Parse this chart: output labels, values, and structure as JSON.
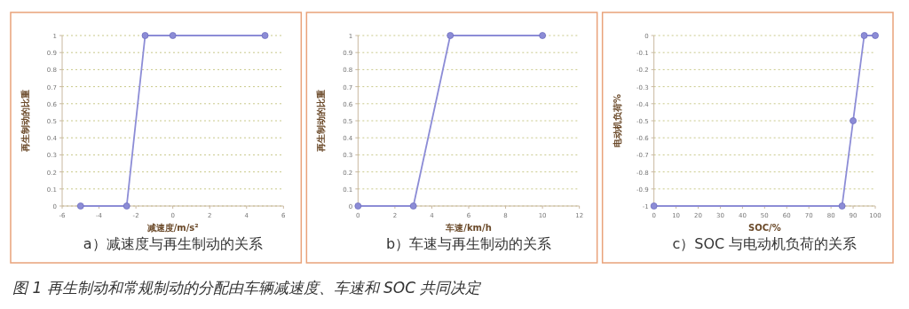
{
  "chart_data": [
    {
      "type": "line",
      "title": "a）减速度与再生制动的关系",
      "xlabel": "减速度/m/s²",
      "ylabel": "再生制动的比重",
      "x": [
        -5,
        -2.5,
        -1.5,
        0,
        5
      ],
      "series": [
        {
          "color": "#8c8cd6",
          "values": [
            0,
            0,
            1,
            1,
            1
          ]
        }
      ],
      "xlim": [
        -6,
        6
      ],
      "xticks": [
        -6,
        -4,
        -2,
        0,
        2,
        4,
        6
      ],
      "ylim": [
        0,
        1
      ],
      "yticks": [
        0,
        0.1,
        0.2,
        0.3,
        0.4,
        0.5,
        0.6,
        0.7,
        0.8,
        0.9,
        1
      ],
      "grid": "y",
      "marker": "circle",
      "line_style": "solid"
    },
    {
      "type": "line",
      "title": "b）车速与再生制动的关系",
      "xlabel": "车速/km/h",
      "ylabel": "再生制动的比重",
      "x": [
        0,
        3,
        5,
        10
      ],
      "series": [
        {
          "color": "#8c8cd6",
          "values": [
            0,
            0,
            1,
            1
          ]
        }
      ],
      "xlim": [
        0,
        12
      ],
      "xticks": [
        0,
        2,
        4,
        6,
        8,
        10,
        12
      ],
      "ylim": [
        0,
        1
      ],
      "yticks": [
        0,
        0.1,
        0.2,
        0.3,
        0.4,
        0.5,
        0.6,
        0.7,
        0.8,
        0.9,
        1
      ],
      "grid": "y",
      "marker": "circle",
      "line_style": "solid"
    },
    {
      "type": "line",
      "title": "c）SOC 与电动机负荷的关系",
      "xlabel": "SOC/%",
      "ylabel": "电动机负荷%",
      "x": [
        0,
        85,
        90,
        95,
        100
      ],
      "series": [
        {
          "color": "#8c8cd6",
          "values": [
            -1,
            -1,
            -0.5,
            0,
            0
          ]
        }
      ],
      "xlim": [
        0,
        100
      ],
      "xticks": [
        0,
        10,
        20,
        30,
        40,
        50,
        60,
        70,
        80,
        90,
        100
      ],
      "ylim": [
        -1,
        0
      ],
      "yticks": [
        -1,
        -0.9,
        -0.8,
        -0.7,
        -0.6,
        -0.5,
        -0.4,
        -0.3,
        -0.2,
        -0.1,
        0
      ],
      "grid": "y",
      "marker": "circle",
      "line_style": "solid",
      "annotations": [
        "图 1  再生制动和常规制动的分配由车辆减速度、车速和 SOC 共同决定"
      ]
    }
  ]
}
